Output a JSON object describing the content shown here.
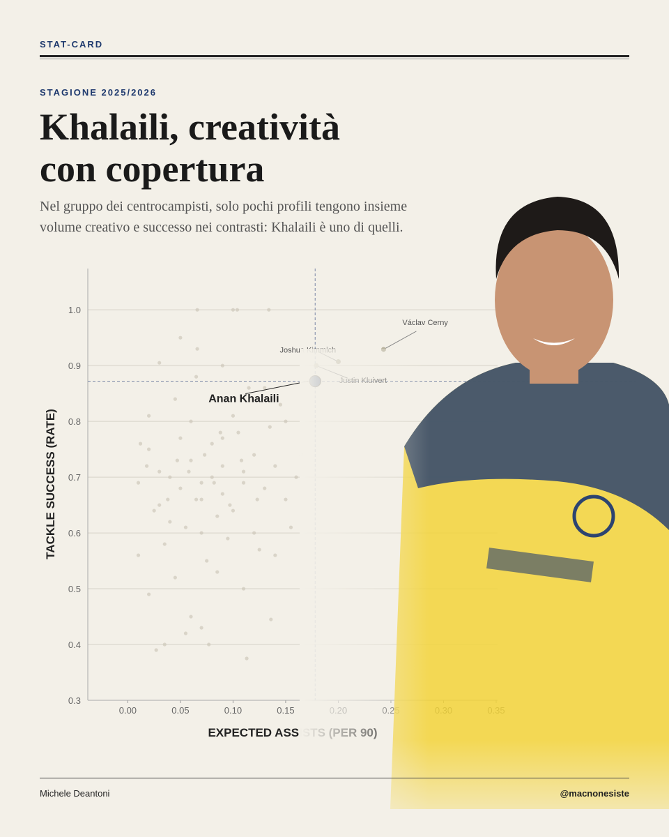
{
  "header": {
    "kicker": "STAT-CARD",
    "season": "STAGIONE 2025/2026",
    "title": [
      "Khalaili, creatività",
      "con copertura"
    ],
    "subtitle": [
      "Nel gruppo dei centrocampisti, solo pochi profili tengono insieme",
      "volume creativo e successo nei contrasti: Khalaili è uno di quelli."
    ]
  },
  "footer": {
    "author": "Michele Deantoni",
    "handle": "@macnonesiste"
  },
  "chart_data": {
    "type": "scatter",
    "x_label": "EXPECTED ASSISTS (PER 90)",
    "y_label": "TACKLE SUCCESS (RATE)",
    "xlim": [
      -0.038,
      0.35
    ],
    "ylim": [
      0.3,
      1.074
    ],
    "xticks": [
      {
        "value": 0,
        "label": "0.00"
      },
      {
        "value": 0.05,
        "label": "0.05"
      },
      {
        "value": 0.1,
        "label": "0.10"
      },
      {
        "value": 0.15,
        "label": "0.15"
      },
      {
        "value": 0.2,
        "label": "0.20"
      },
      {
        "value": 0.25,
        "label": "0.25"
      },
      {
        "value": 0.3,
        "label": "0.30"
      },
      {
        "value": 0.35,
        "label": "0.35"
      }
    ],
    "yticks": [
      0.3,
      0.4,
      0.5,
      0.6,
      0.7,
      0.8,
      0.9,
      {
        "value": 1,
        "label": "1.0"
      }
    ],
    "grid": true,
    "series": [
      {
        "color": "#cdc8bb",
        "x": [
          0.02,
          0.03,
          0.05,
          0.06,
          0.07,
          0.08,
          0.09,
          0.1,
          0.11,
          0.12,
          0.04,
          0.05,
          0.06,
          0.07,
          0.08,
          0.09,
          0.1,
          0.11,
          0.03,
          0.13,
          0.14,
          0.15,
          0.02,
          0.01,
          0.035,
          0.045,
          0.055,
          0.065,
          0.075,
          0.085,
          0.095,
          0.105,
          0.115,
          0.125,
          0.135,
          0.145,
          0.155,
          0.165,
          0.012,
          0.025,
          0.066,
          0.066,
          0.1,
          0.104,
          0.134,
          0.03,
          0.05,
          0.09,
          0.11,
          0.06,
          0.02,
          0.035,
          0.055,
          0.077,
          0.113,
          0.136,
          0.027,
          0.045,
          0.07,
          0.085,
          0.12,
          0.14,
          0.16,
          0.04,
          0.07,
          0.09,
          0.13,
          0.15,
          0.01,
          0.065,
          0.047,
          0.082,
          0.097,
          0.123,
          0.058,
          0.073,
          0.088,
          0.038,
          0.108,
          0.018
        ],
        "values": [
          0.75,
          0.71,
          0.68,
          0.73,
          0.66,
          0.7,
          0.72,
          0.64,
          0.69,
          0.74,
          0.62,
          0.77,
          0.8,
          0.69,
          0.76,
          0.67,
          0.81,
          0.71,
          0.65,
          0.68,
          0.72,
          0.66,
          0.81,
          0.69,
          0.58,
          0.84,
          0.61,
          0.88,
          0.55,
          0.63,
          0.59,
          0.78,
          0.86,
          0.57,
          0.79,
          0.83,
          0.61,
          0.74,
          0.76,
          0.64,
          1.0,
          0.93,
          1.0,
          1.0,
          1.0,
          0.905,
          0.95,
          0.9,
          0.5,
          0.45,
          0.49,
          0.4,
          0.42,
          0.4,
          0.375,
          0.445,
          0.39,
          0.52,
          0.43,
          0.53,
          0.6,
          0.56,
          0.7,
          0.7,
          0.6,
          0.77,
          0.86,
          0.8,
          0.56,
          0.66,
          0.73,
          0.69,
          0.65,
          0.66,
          0.71,
          0.74,
          0.78,
          0.66,
          0.73,
          0.72
        ]
      }
    ],
    "highlights": [
      {
        "label": "Anan Khalaili",
        "x": 0.178,
        "y": 0.872,
        "color": "#1f3a6e"
      },
      {
        "label": "Joshua Kimmich",
        "x": 0.2,
        "y": 0.907,
        "color": "#b8b39f"
      },
      {
        "label": "Justin Kluivert",
        "x": 0.179,
        "y": 0.9,
        "color": "#b8b39f"
      },
      {
        "label": "Václav Cerny",
        "x": 0.243,
        "y": 0.929,
        "color": "#b8b39f"
      }
    ]
  }
}
